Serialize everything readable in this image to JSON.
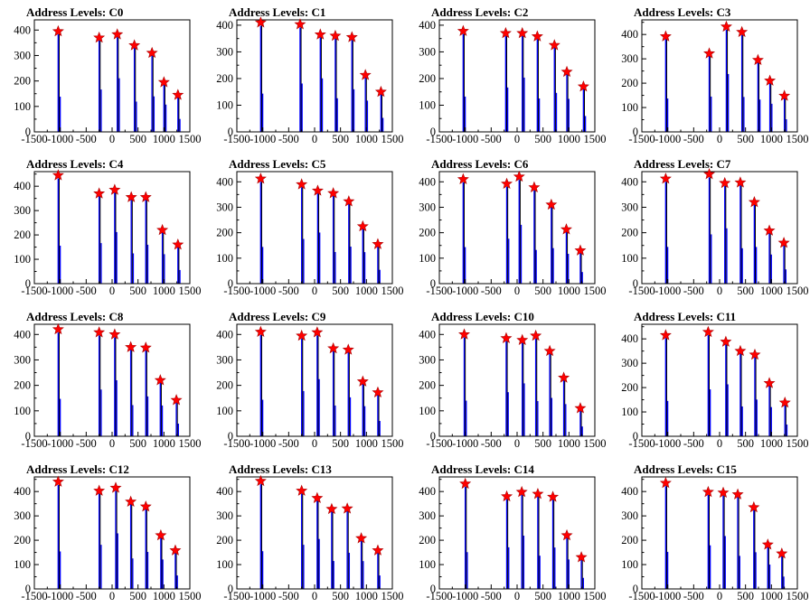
{
  "chart_data": {
    "type": "histogram-grid",
    "x_range": [
      -1500,
      1500
    ],
    "x_ticks": [
      "-1500",
      "-1000",
      "-500",
      "0",
      "500",
      "1000",
      "1500"
    ],
    "colors": {
      "histogram": "#0000ff",
      "peak_marker": "#ff0000",
      "frame": "#000000"
    },
    "panels": [
      {
        "title": "Address Levels: C0",
        "ylim": [
          0,
          440
        ],
        "yticks": [
          "0",
          "100",
          "200",
          "300",
          "400"
        ],
        "peaks": [
          [
            -1040,
            395
          ],
          [
            -250,
            370
          ],
          [
            100,
            383
          ],
          [
            430,
            340
          ],
          [
            770,
            310
          ],
          [
            1000,
            195
          ],
          [
            1270,
            145
          ]
        ]
      },
      {
        "title": "Address Levels: C1",
        "ylim": [
          0,
          420
        ],
        "yticks": [
          "0",
          "100",
          "200",
          "300",
          "400"
        ],
        "peaks": [
          [
            -1040,
            410
          ],
          [
            -280,
            403
          ],
          [
            110,
            365
          ],
          [
            400,
            360
          ],
          [
            720,
            355
          ],
          [
            980,
            213
          ],
          [
            1280,
            150
          ]
        ]
      },
      {
        "title": "Address Levels: C2",
        "ylim": [
          0,
          420
        ],
        "yticks": [
          "0",
          "100",
          "200",
          "300",
          "400"
        ],
        "peaks": [
          [
            -1040,
            378
          ],
          [
            -220,
            370
          ],
          [
            100,
            370
          ],
          [
            390,
            358
          ],
          [
            720,
            325
          ],
          [
            960,
            225
          ],
          [
            1280,
            170
          ]
        ]
      },
      {
        "title": "Address Levels: C3",
        "ylim": [
          0,
          460
        ],
        "yticks": [
          "0",
          "100",
          "200",
          "300",
          "400"
        ],
        "peaks": [
          [
            -1040,
            392
          ],
          [
            -200,
            322
          ],
          [
            130,
            432
          ],
          [
            430,
            410
          ],
          [
            740,
            295
          ],
          [
            970,
            210
          ],
          [
            1250,
            148
          ]
        ]
      },
      {
        "title": "Address Levels: C4",
        "ylim": [
          0,
          460
        ],
        "yticks": [
          "0",
          "100",
          "200",
          "300",
          "400"
        ],
        "peaks": [
          [
            -1040,
            445
          ],
          [
            -250,
            370
          ],
          [
            50,
            385
          ],
          [
            370,
            355
          ],
          [
            650,
            355
          ],
          [
            970,
            220
          ],
          [
            1270,
            160
          ]
        ]
      },
      {
        "title": "Address Levels: C5",
        "ylim": [
          0,
          440
        ],
        "yticks": [
          "0",
          "100",
          "200",
          "300",
          "400"
        ],
        "peaks": [
          [
            -1040,
            412
          ],
          [
            -250,
            390
          ],
          [
            60,
            365
          ],
          [
            360,
            355
          ],
          [
            660,
            323
          ],
          [
            930,
            225
          ],
          [
            1220,
            155
          ]
        ]
      },
      {
        "title": "Address Levels: C6",
        "ylim": [
          0,
          440
        ],
        "yticks": [
          "0",
          "100",
          "200",
          "300",
          "400"
        ],
        "peaks": [
          [
            -1040,
            410
          ],
          [
            -200,
            392
          ],
          [
            40,
            420
          ],
          [
            330,
            378
          ],
          [
            660,
            310
          ],
          [
            950,
            213
          ],
          [
            1220,
            130
          ]
        ]
      },
      {
        "title": "Address Levels: C7",
        "ylim": [
          0,
          440
        ],
        "yticks": [
          "0",
          "100",
          "200",
          "300",
          "400"
        ],
        "peaks": [
          [
            -1040,
            412
          ],
          [
            -200,
            430
          ],
          [
            100,
            395
          ],
          [
            400,
            397
          ],
          [
            670,
            320
          ],
          [
            960,
            208
          ],
          [
            1240,
            160
          ]
        ]
      },
      {
        "title": "Address Levels: C8",
        "ylim": [
          0,
          440
        ],
        "yticks": [
          "0",
          "100",
          "200",
          "300",
          "400"
        ],
        "peaks": [
          [
            -1040,
            420
          ],
          [
            -250,
            408
          ],
          [
            50,
            400
          ],
          [
            360,
            350
          ],
          [
            650,
            348
          ],
          [
            930,
            220
          ],
          [
            1240,
            142
          ]
        ]
      },
      {
        "title": "Address Levels: C9",
        "ylim": [
          0,
          440
        ],
        "yticks": [
          "0",
          "100",
          "200",
          "300",
          "400"
        ],
        "peaks": [
          [
            -1040,
            410
          ],
          [
            -250,
            395
          ],
          [
            50,
            408
          ],
          [
            360,
            345
          ],
          [
            650,
            340
          ],
          [
            930,
            215
          ],
          [
            1220,
            172
          ]
        ]
      },
      {
        "title": "Address Levels: C10",
        "ylim": [
          0,
          440
        ],
        "yticks": [
          "0",
          "100",
          "200",
          "300",
          "400"
        ],
        "peaks": [
          [
            -1020,
            400
          ],
          [
            -210,
            385
          ],
          [
            100,
            378
          ],
          [
            360,
            395
          ],
          [
            630,
            335
          ],
          [
            900,
            230
          ],
          [
            1220,
            110
          ]
        ]
      },
      {
        "title": "Address Levels: C11",
        "ylim": [
          0,
          460
        ],
        "yticks": [
          "0",
          "100",
          "200",
          "300",
          "400"
        ],
        "peaks": [
          [
            -1040,
            415
          ],
          [
            -220,
            428
          ],
          [
            120,
            388
          ],
          [
            400,
            350
          ],
          [
            680,
            335
          ],
          [
            960,
            218
          ],
          [
            1260,
            138
          ]
        ]
      },
      {
        "title": "Address Levels: C12",
        "ylim": [
          0,
          460
        ],
        "yticks": [
          "0",
          "100",
          "200",
          "300",
          "400"
        ],
        "peaks": [
          [
            -1040,
            440
          ],
          [
            -250,
            403
          ],
          [
            70,
            415
          ],
          [
            360,
            358
          ],
          [
            650,
            338
          ],
          [
            940,
            220
          ],
          [
            1220,
            158
          ]
        ]
      },
      {
        "title": "Address Levels: C13",
        "ylim": [
          0,
          460
        ],
        "yticks": [
          "0",
          "100",
          "200",
          "300",
          "400"
        ],
        "peaks": [
          [
            -1040,
            443
          ],
          [
            -250,
            403
          ],
          [
            50,
            373
          ],
          [
            330,
            328
          ],
          [
            630,
            330
          ],
          [
            900,
            208
          ],
          [
            1220,
            158
          ]
        ]
      },
      {
        "title": "Address Levels: C14",
        "ylim": [
          0,
          460
        ],
        "yticks": [
          "0",
          "100",
          "200",
          "300",
          "400"
        ],
        "peaks": [
          [
            -1000,
            432
          ],
          [
            -200,
            380
          ],
          [
            90,
            398
          ],
          [
            400,
            390
          ],
          [
            690,
            378
          ],
          [
            960,
            220
          ],
          [
            1240,
            130
          ]
        ]
      },
      {
        "title": "Address Levels: C15",
        "ylim": [
          0,
          460
        ],
        "yticks": [
          "0",
          "100",
          "200",
          "300",
          "400"
        ],
        "peaks": [
          [
            -1040,
            435
          ],
          [
            -220,
            398
          ],
          [
            70,
            395
          ],
          [
            350,
            388
          ],
          [
            660,
            335
          ],
          [
            930,
            182
          ],
          [
            1200,
            145
          ]
        ]
      }
    ]
  }
}
